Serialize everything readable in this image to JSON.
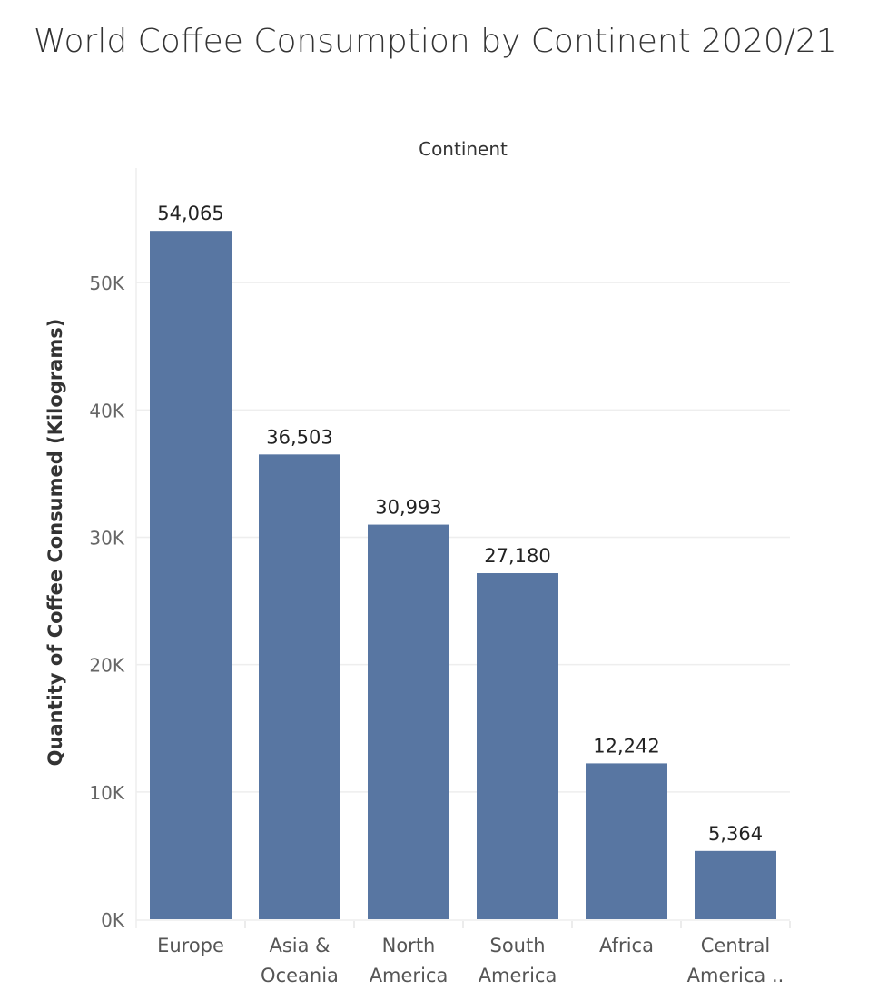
{
  "chart_data": {
    "type": "bar",
    "title": "World Coffee Consumption by Continent 2020/21",
    "column_header": "Continent",
    "ylabel": "Quantity of Coffee Consumed (Kilograms)",
    "categories": [
      [
        "Europe"
      ],
      [
        "Asia &",
        "Oceania"
      ],
      [
        "North",
        "America"
      ],
      [
        "South",
        "America"
      ],
      [
        "Africa"
      ],
      [
        "Central",
        "America .."
      ]
    ],
    "values": [
      54065,
      36503,
      30993,
      27180,
      12242,
      5364
    ],
    "value_labels": [
      "54,065",
      "36,503",
      "30,993",
      "27,180",
      "12,242",
      "5,364"
    ],
    "ylim": [
      0,
      59000
    ],
    "yticks": [
      0,
      10000,
      20000,
      30000,
      40000,
      50000
    ],
    "ytick_labels": [
      "0K",
      "10K",
      "20K",
      "30K",
      "40K",
      "50K"
    ],
    "grid": true,
    "bar_color": "#5876a2",
    "grid_color": "#eeeeee"
  }
}
